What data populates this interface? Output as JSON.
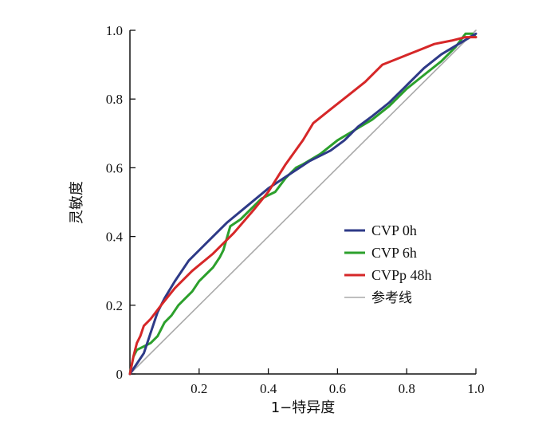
{
  "chart_data": {
    "type": "line",
    "xlabel": "1−特异度",
    "ylabel": "灵敏度",
    "xlim": [
      0,
      1.0
    ],
    "ylim": [
      0,
      1.0
    ],
    "x_ticks": [
      "0.2",
      "0.4",
      "0.6",
      "0.8",
      "1.0"
    ],
    "y_ticks": [
      "0",
      "0.2",
      "0.4",
      "0.6",
      "0.8",
      "1.0"
    ],
    "grid": false,
    "legend_position": "right-middle",
    "series": [
      {
        "name": "CVP 0h",
        "color": "#2e3a87",
        "points": [
          [
            0,
            0
          ],
          [
            0.02,
            0.03
          ],
          [
            0.04,
            0.06
          ],
          [
            0.06,
            0.12
          ],
          [
            0.08,
            0.18
          ],
          [
            0.1,
            0.22
          ],
          [
            0.13,
            0.27
          ],
          [
            0.17,
            0.33
          ],
          [
            0.22,
            0.38
          ],
          [
            0.28,
            0.44
          ],
          [
            0.34,
            0.49
          ],
          [
            0.4,
            0.54
          ],
          [
            0.46,
            0.58
          ],
          [
            0.52,
            0.62
          ],
          [
            0.58,
            0.65
          ],
          [
            0.62,
            0.68
          ],
          [
            0.66,
            0.72
          ],
          [
            0.7,
            0.75
          ],
          [
            0.75,
            0.79
          ],
          [
            0.8,
            0.84
          ],
          [
            0.85,
            0.89
          ],
          [
            0.9,
            0.93
          ],
          [
            0.95,
            0.96
          ],
          [
            1.0,
            0.99
          ]
        ]
      },
      {
        "name": "CVP 6h",
        "color": "#2ca02c",
        "points": [
          [
            0,
            0
          ],
          [
            0.01,
            0.05
          ],
          [
            0.02,
            0.07
          ],
          [
            0.04,
            0.08
          ],
          [
            0.06,
            0.09
          ],
          [
            0.08,
            0.11
          ],
          [
            0.1,
            0.15
          ],
          [
            0.12,
            0.17
          ],
          [
            0.14,
            0.2
          ],
          [
            0.16,
            0.22
          ],
          [
            0.18,
            0.24
          ],
          [
            0.2,
            0.27
          ],
          [
            0.22,
            0.29
          ],
          [
            0.24,
            0.31
          ],
          [
            0.26,
            0.34
          ],
          [
            0.27,
            0.36
          ],
          [
            0.29,
            0.43
          ],
          [
            0.32,
            0.45
          ],
          [
            0.35,
            0.48
          ],
          [
            0.38,
            0.51
          ],
          [
            0.4,
            0.52
          ],
          [
            0.42,
            0.53
          ],
          [
            0.45,
            0.57
          ],
          [
            0.48,
            0.6
          ],
          [
            0.5,
            0.61
          ],
          [
            0.55,
            0.64
          ],
          [
            0.6,
            0.68
          ],
          [
            0.65,
            0.71
          ],
          [
            0.7,
            0.74
          ],
          [
            0.75,
            0.78
          ],
          [
            0.8,
            0.83
          ],
          [
            0.85,
            0.87
          ],
          [
            0.9,
            0.91
          ],
          [
            0.94,
            0.95
          ],
          [
            0.97,
            0.99
          ],
          [
            0.99,
            0.99
          ],
          [
            1.0,
            0.98
          ]
        ]
      },
      {
        "name": "CVPp 48h",
        "color": "#d62728",
        "points": [
          [
            0,
            0
          ],
          [
            0.01,
            0.05
          ],
          [
            0.02,
            0.09
          ],
          [
            0.03,
            0.11
          ],
          [
            0.04,
            0.14
          ],
          [
            0.06,
            0.16
          ],
          [
            0.09,
            0.2
          ],
          [
            0.13,
            0.25
          ],
          [
            0.18,
            0.3
          ],
          [
            0.24,
            0.35
          ],
          [
            0.3,
            0.41
          ],
          [
            0.36,
            0.48
          ],
          [
            0.4,
            0.53
          ],
          [
            0.45,
            0.61
          ],
          [
            0.5,
            0.68
          ],
          [
            0.53,
            0.73
          ],
          [
            0.58,
            0.77
          ],
          [
            0.63,
            0.81
          ],
          [
            0.68,
            0.85
          ],
          [
            0.73,
            0.9
          ],
          [
            0.78,
            0.92
          ],
          [
            0.83,
            0.94
          ],
          [
            0.88,
            0.96
          ],
          [
            0.93,
            0.97
          ],
          [
            0.97,
            0.98
          ],
          [
            1.0,
            0.98
          ]
        ]
      },
      {
        "name": "参考线",
        "color": "#aaaaaa",
        "points": [
          [
            0,
            0
          ],
          [
            1.0,
            1.0
          ]
        ]
      }
    ]
  }
}
